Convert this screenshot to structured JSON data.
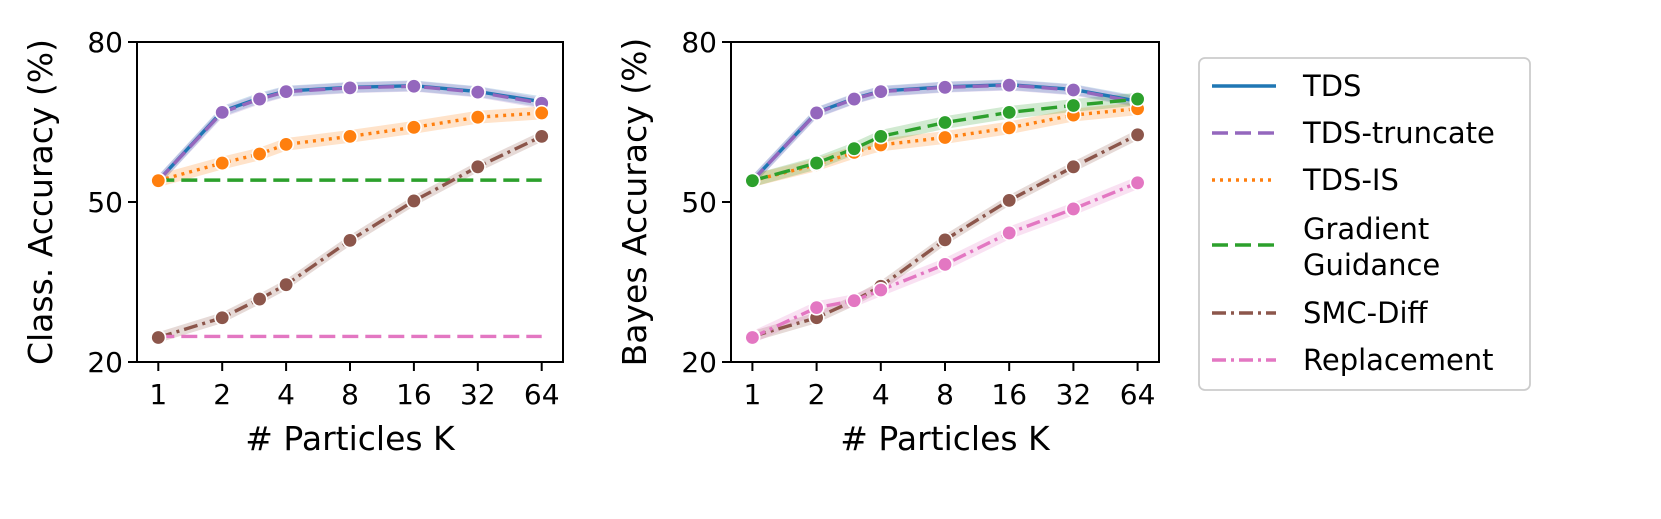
{
  "chart_data": [
    {
      "type": "line",
      "ylabel": "Class. Accuracy (%)",
      "xlabel": "# Particles K",
      "xscale": "log2",
      "x": [
        1,
        2,
        3,
        4,
        8,
        16,
        32,
        64
      ],
      "xticks": [
        "1",
        "2",
        "4",
        "8",
        "16",
        "32",
        "64"
      ],
      "xtick_values": [
        1,
        2,
        4,
        8,
        16,
        32,
        64
      ],
      "ylim": [
        20,
        80
      ],
      "yticks": [
        20,
        50,
        80
      ],
      "series": [
        {
          "name": "TDS",
          "color": "#1f77b4",
          "dash": "solid",
          "x": [
            1,
            2,
            3,
            4,
            8,
            16,
            32,
            64
          ],
          "values": [
            54.0,
            67.0,
            69.5,
            70.8,
            71.5,
            71.8,
            70.7,
            68.8
          ],
          "markers": true,
          "band": 1.0
        },
        {
          "name": "TDS-truncate",
          "color": "#9467bd",
          "dash": "dashed",
          "x": [
            1,
            2,
            3,
            4,
            8,
            16,
            32,
            64
          ],
          "values": [
            54.0,
            66.8,
            69.3,
            70.7,
            71.4,
            71.7,
            70.6,
            68.5
          ],
          "markers": true,
          "band": 1.0
        },
        {
          "name": "TDS-IS",
          "color": "#ff7f0e",
          "dash": "dotted",
          "x": [
            1,
            2,
            3,
            4,
            8,
            16,
            32,
            64
          ],
          "values": [
            54.0,
            57.3,
            59.0,
            60.8,
            62.3,
            64.0,
            65.9,
            66.7
          ],
          "markers": true,
          "band": 1.2
        },
        {
          "name": "Gradient Guidance",
          "color": "#2ca02c",
          "dash": "dashed",
          "x": [
            1,
            64
          ],
          "values": [
            54.1,
            54.1
          ],
          "markers": false,
          "band": 0
        },
        {
          "name": "SMC-Diff",
          "color": "#8c564b",
          "dash": "dashdot",
          "x": [
            1,
            2,
            3,
            4,
            8,
            16,
            32,
            64
          ],
          "values": [
            24.6,
            28.3,
            31.8,
            34.5,
            42.8,
            50.2,
            56.6,
            62.3
          ],
          "markers": true,
          "band": 1.0
        },
        {
          "name": "Replacement",
          "color": "#e377c2",
          "dash": "dashed",
          "x": [
            1,
            64
          ],
          "values": [
            24.8,
            24.8
          ],
          "markers": false,
          "band": 0
        }
      ]
    },
    {
      "type": "line",
      "ylabel": "Bayes Accuracy (%)",
      "xlabel": "# Particles K",
      "xscale": "log2",
      "x": [
        1,
        2,
        3,
        4,
        8,
        16,
        32,
        64
      ],
      "xticks": [
        "1",
        "2",
        "4",
        "8",
        "16",
        "32",
        "64"
      ],
      "xtick_values": [
        1,
        2,
        4,
        8,
        16,
        32,
        64
      ],
      "ylim": [
        20,
        80
      ],
      "yticks": [
        20,
        50,
        80
      ],
      "series": [
        {
          "name": "TDS",
          "color": "#1f77b4",
          "dash": "solid",
          "x": [
            1,
            2,
            3,
            4,
            8,
            16,
            32,
            64
          ],
          "values": [
            54.0,
            66.8,
            69.4,
            70.8,
            71.6,
            72.0,
            71.1,
            68.9
          ],
          "markers": true,
          "band": 1.0
        },
        {
          "name": "TDS-truncate",
          "color": "#9467bd",
          "dash": "dashed",
          "x": [
            1,
            2,
            3,
            4,
            8,
            16,
            32,
            64
          ],
          "values": [
            54.0,
            66.7,
            69.3,
            70.7,
            71.5,
            71.9,
            71.0,
            68.7
          ],
          "markers": true,
          "band": 1.0
        },
        {
          "name": "TDS-IS",
          "color": "#ff7f0e",
          "dash": "dotted",
          "x": [
            1,
            2,
            3,
            4,
            8,
            16,
            32,
            64
          ],
          "values": [
            54.0,
            57.0,
            59.3,
            60.7,
            62.1,
            63.9,
            66.3,
            67.5
          ],
          "markers": true,
          "band": 1.2
        },
        {
          "name": "Gradient Guidance",
          "color": "#2ca02c",
          "dash": "dashed",
          "x": [
            1,
            2,
            3,
            4,
            8,
            16,
            32,
            64
          ],
          "values": [
            54.0,
            57.3,
            60.0,
            62.3,
            64.9,
            66.8,
            68.1,
            69.3
          ],
          "markers": true,
          "band": 1.2
        },
        {
          "name": "SMC-Diff",
          "color": "#8c564b",
          "dash": "dashdot",
          "x": [
            1,
            2,
            3,
            4,
            8,
            16,
            32,
            64
          ],
          "values": [
            24.8,
            28.3,
            31.5,
            34.2,
            42.9,
            50.3,
            56.6,
            62.6
          ],
          "markers": true,
          "band": 1.0
        },
        {
          "name": "Replacement",
          "color": "#e377c2",
          "dash": "dashdot",
          "x": [
            1,
            2,
            3,
            4,
            8,
            16,
            32,
            64
          ],
          "values": [
            24.6,
            30.2,
            31.5,
            33.5,
            38.3,
            44.2,
            48.7,
            53.6
          ],
          "markers": true,
          "band": 1.2
        }
      ]
    }
  ],
  "legend": [
    {
      "label": "TDS",
      "color": "#1f77b4",
      "dash": "solid"
    },
    {
      "label": "TDS-truncate",
      "color": "#9467bd",
      "dash": "dashed"
    },
    {
      "label": "TDS-IS",
      "color": "#ff7f0e",
      "dash": "dotted"
    },
    {
      "label": "Gradient Guidance",
      "lines": [
        "Gradient",
        "Guidance"
      ],
      "color": "#2ca02c",
      "dash": "dashed"
    },
    {
      "label": "SMC-Diff",
      "color": "#8c564b",
      "dash": "dashdot"
    },
    {
      "label": "Replacement",
      "color": "#e377c2",
      "dash": "dashdot"
    }
  ]
}
